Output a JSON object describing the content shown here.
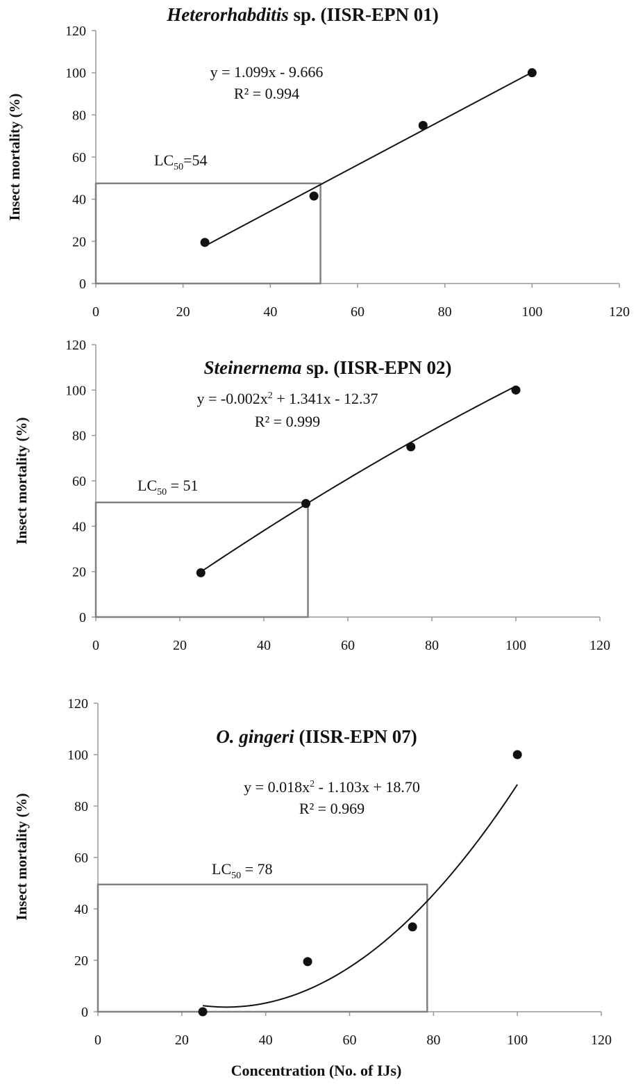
{
  "chart_data": [
    {
      "type": "scatter",
      "title": {
        "species": "Heterorhabditis",
        "rest": " sp. (IISR-EPN 01)"
      },
      "ylabel": "Insect mortality (%)",
      "xlabel": "",
      "xlim": [
        0,
        120
      ],
      "ylim": [
        0,
        120
      ],
      "xticks": [
        0,
        20,
        40,
        60,
        80,
        100,
        120
      ],
      "yticks": [
        0,
        20,
        40,
        60,
        80,
        100,
        120
      ],
      "x": [
        25,
        50,
        75,
        100
      ],
      "y": [
        19.5,
        41.5,
        75,
        100
      ],
      "trendline": {
        "type": "linear",
        "coef": [
          -9.666,
          1.099
        ],
        "x_range": [
          25,
          100
        ]
      },
      "equation": "y = 1.099x - 9.666",
      "r2_label": "R² = 0.994",
      "lc50": {
        "prefix": "LC",
        "sub": "50",
        "suffix": "=54",
        "x": 51.5,
        "y": 47.5
      }
    },
    {
      "type": "scatter",
      "title": {
        "species": "Steinernema",
        "rest": " sp. (IISR-EPN 02)"
      },
      "ylabel": "Insect mortality (%)",
      "xlabel": "",
      "xlim": [
        0,
        120
      ],
      "ylim": [
        0,
        120
      ],
      "xticks": [
        0,
        20,
        40,
        60,
        80,
        100,
        120
      ],
      "yticks": [
        0,
        20,
        40,
        60,
        80,
        100,
        120
      ],
      "x": [
        25,
        50,
        75,
        100
      ],
      "y": [
        19.5,
        50,
        75,
        100
      ],
      "trendline": {
        "type": "polynomial",
        "coef": [
          -12.37,
          1.341,
          -0.002
        ],
        "x_range": [
          25,
          100
        ]
      },
      "equation": "y = -0.002x² + 1.341x - 12.37",
      "r2_label": "R² = 0.999",
      "lc50": {
        "prefix": "LC",
        "sub": "50",
        "suffix": " = 51",
        "x": 50.5,
        "y": 50.5
      }
    },
    {
      "type": "scatter",
      "title": {
        "species": "O. gingeri",
        "rest": " (IISR-EPN 07)"
      },
      "ylabel": "Insect mortality (%)",
      "xlabel": "Concentration (No. of IJs)",
      "xlim": [
        0,
        120
      ],
      "ylim": [
        0,
        120
      ],
      "xticks": [
        0,
        20,
        40,
        60,
        80,
        100,
        120
      ],
      "yticks": [
        0,
        20,
        40,
        60,
        80,
        100,
        120
      ],
      "x": [
        25,
        50,
        75,
        100
      ],
      "y": [
        0,
        19.5,
        33,
        100
      ],
      "trendline": {
        "type": "polynomial",
        "coef": [
          18.7,
          -1.103,
          0.018
        ],
        "x_range": [
          25,
          100
        ]
      },
      "equation": "y = 0.018x² - 1.103x + 18.70",
      "r2_label": "R² = 0.969",
      "lc50": {
        "prefix": "LC",
        "sub": "50",
        "suffix": " = 78",
        "x": 78.5,
        "y": 49.5
      }
    }
  ]
}
